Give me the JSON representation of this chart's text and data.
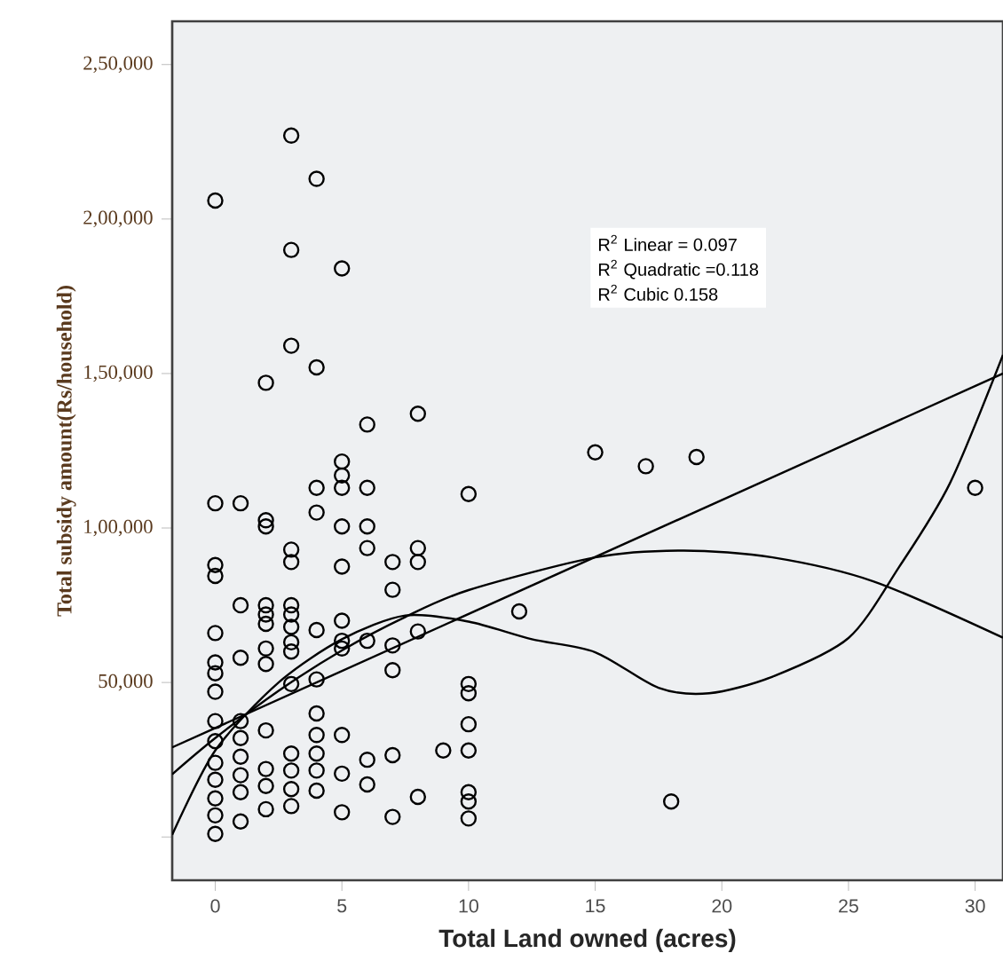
{
  "chart_data": {
    "type": "scatter",
    "xlabel": "Total Land owned (acres)",
    "ylabel": "Total subsidy amount(Rs/household)",
    "xlim": [
      -1.7,
      31.1
    ],
    "ylim": [
      -14000,
      264000
    ],
    "xticks": [
      0,
      5,
      10,
      15,
      20,
      25,
      30
    ],
    "yticks": [
      {
        "value": 0,
        "label": null
      },
      {
        "value": 50000,
        "label": "50,000"
      },
      {
        "value": 100000,
        "label": "1,00,000"
      },
      {
        "value": 150000,
        "label": "1,50,000"
      },
      {
        "value": 200000,
        "label": "2,00,000"
      },
      {
        "value": 250000,
        "label": "2,50,000"
      }
    ],
    "grid": false,
    "annotations": [
      "R$^{2}$ Linear = 0.097",
      "R$^{2}$ Quadratic =0.118",
      "R$^{2}$ Cubic 0.158"
    ],
    "series": [
      {
        "marker": "circle",
        "color": "#000000",
        "x": [
          0,
          0,
          0,
          0,
          0,
          0,
          0,
          0,
          0,
          0,
          0,
          0,
          0,
          0,
          0,
          1,
          1,
          1,
          1,
          1,
          1,
          1,
          1,
          1,
          2,
          2,
          2,
          2,
          2,
          2,
          2,
          2,
          2,
          2,
          2,
          2,
          3,
          3,
          3,
          3,
          3,
          3,
          3,
          3,
          3,
          3,
          3,
          3,
          3,
          3,
          3,
          4,
          4,
          4,
          4,
          4,
          4,
          4,
          4,
          4,
          4,
          4,
          5,
          5,
          5,
          5,
          5,
          5,
          5,
          5,
          5,
          5,
          5,
          5,
          6,
          6,
          6,
          6,
          6,
          6,
          6,
          7,
          7,
          7,
          7,
          7,
          7,
          8,
          8,
          8,
          8,
          8,
          9,
          10,
          10,
          10,
          10,
          10,
          10,
          10,
          10,
          12,
          15,
          17,
          18,
          19,
          30
        ],
        "values": [
          206000,
          108000,
          88000,
          84500,
          66000,
          56500,
          53000,
          47000,
          37500,
          31000,
          24000,
          18500,
          12500,
          7000,
          1000,
          108000,
          75000,
          58000,
          37500,
          32000,
          26000,
          20000,
          14500,
          5000,
          147000,
          102500,
          100500,
          75000,
          72000,
          69000,
          61000,
          56000,
          34500,
          22000,
          16500,
          9000,
          227000,
          190000,
          159000,
          93000,
          89000,
          75000,
          72000,
          68000,
          63000,
          60000,
          49500,
          27000,
          21500,
          15500,
          10000,
          213000,
          152000,
          113000,
          105000,
          67000,
          51000,
          40000,
          33000,
          27000,
          21500,
          15000,
          184000,
          121500,
          117000,
          113000,
          100500,
          87500,
          70000,
          63500,
          61000,
          33000,
          20500,
          8000,
          133500,
          113000,
          100500,
          93500,
          63500,
          25000,
          17000,
          89000,
          80000,
          62000,
          54000,
          26500,
          6500,
          137000,
          93500,
          89000,
          66500,
          13000,
          28000,
          111000,
          49500,
          46500,
          36500,
          28000,
          14500,
          11500,
          6000,
          73000,
          124500,
          120000,
          11500,
          123000,
          113000
        ]
      },
      {
        "type": "line",
        "marker": "none",
        "color": "#000000",
        "x": [
          -1.7,
          31.1
        ],
        "values": [
          29000,
          150000
        ]
      },
      {
        "type": "line",
        "marker": "none",
        "color": "#000000",
        "x": [
          -1.7,
          0,
          2.5,
          5,
          7.5,
          10,
          15,
          18.5,
          22,
          26,
          31.1
        ],
        "values": [
          20300,
          32000,
          47300,
          60400,
          71200,
          79900,
          90500,
          92700,
          90500,
          82700,
          64500
        ]
      },
      {
        "type": "line",
        "marker": "none",
        "color": "#000000",
        "x": [
          -1.7,
          0,
          2.5,
          5,
          7.5,
          10,
          12.5,
          15,
          17.5,
          19.5,
          22,
          25,
          27,
          29,
          31.1
        ],
        "values": [
          700,
          28000,
          50000,
          64000,
          71700,
          69700,
          64000,
          59800,
          48300,
          46500,
          51900,
          64400,
          87400,
          114400,
          156000
        ]
      }
    ]
  }
}
